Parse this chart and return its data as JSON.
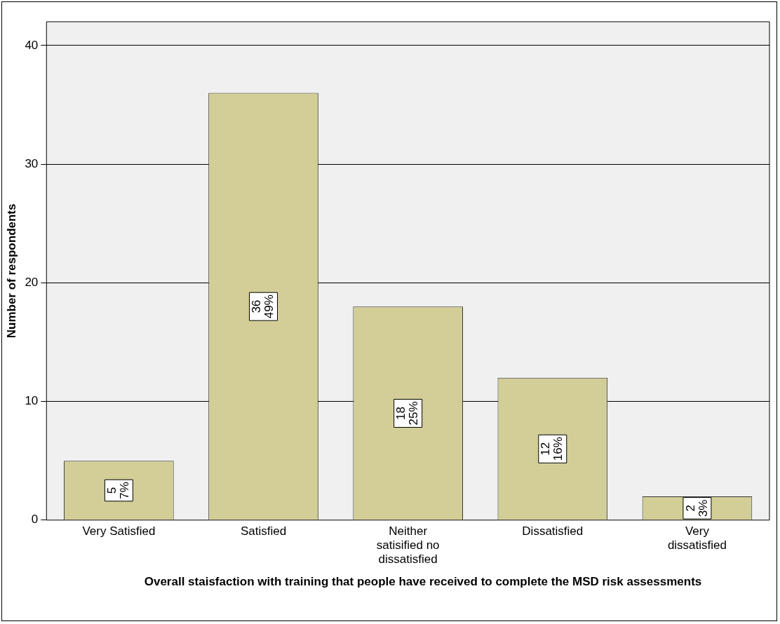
{
  "chart_data": {
    "type": "bar",
    "xlabel": "Overall staisfaction with training that people have received to complete the MSD risk assessments",
    "ylabel": "Number of respondents",
    "categories": [
      "Very Satisfied",
      "Satisfied",
      "Neither satisified no dissatisfied",
      "Dissatisfied",
      "Very dissatisfied"
    ],
    "values": [
      5,
      36,
      18,
      12,
      2
    ],
    "value_labels": [
      "5 7%",
      "36 49%",
      "18 25%",
      "12 16%",
      "2 3%"
    ],
    "color": "#d3ce97",
    "ylim": [
      0,
      42
    ],
    "yticks": [
      0,
      10,
      20,
      30,
      40
    ],
    "grid": "y",
    "legend": false
  }
}
